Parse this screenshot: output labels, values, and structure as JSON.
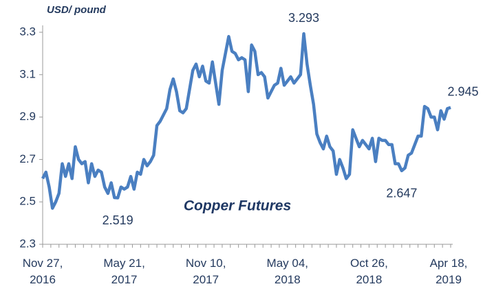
{
  "chart_data": {
    "type": "line",
    "title": "Copper Futures",
    "y_label": "USD/ pound",
    "categories": [
      "Nov 27,\n2016",
      null,
      null,
      null,
      null,
      null,
      null,
      null,
      null,
      null,
      null,
      null,
      null,
      null,
      null,
      null,
      null,
      null,
      null,
      null,
      null,
      null,
      null,
      null,
      null,
      "May 21,\n2017",
      null,
      null,
      null,
      null,
      null,
      null,
      null,
      null,
      null,
      null,
      null,
      null,
      null,
      null,
      null,
      null,
      null,
      null,
      null,
      null,
      null,
      null,
      null,
      null,
      "Nov 10,\n2017",
      null,
      null,
      null,
      null,
      null,
      null,
      null,
      null,
      null,
      null,
      null,
      null,
      null,
      null,
      null,
      null,
      null,
      null,
      null,
      null,
      null,
      null,
      null,
      null,
      "May 04,\n2018",
      null,
      null,
      null,
      null,
      null,
      null,
      null,
      null,
      null,
      null,
      null,
      null,
      null,
      null,
      null,
      null,
      null,
      null,
      null,
      null,
      null,
      null,
      null,
      null,
      "Oct 26,\n2018",
      null,
      null,
      null,
      null,
      null,
      null,
      null,
      null,
      null,
      null,
      null,
      null,
      null,
      null,
      null,
      null,
      null,
      null,
      null,
      null,
      null,
      null,
      null,
      null,
      "Apr 18,\n2019"
    ],
    "series": [
      {
        "name": "Copper Futures",
        "color": "#4a7fc1",
        "values": [
          2.61,
          2.64,
          2.57,
          2.47,
          2.5,
          2.54,
          2.68,
          2.62,
          2.68,
          2.61,
          2.76,
          2.7,
          2.68,
          2.69,
          2.59,
          2.68,
          2.62,
          2.65,
          2.64,
          2.57,
          2.54,
          2.59,
          2.52,
          2.519,
          2.57,
          2.56,
          2.57,
          2.62,
          2.56,
          2.64,
          2.63,
          2.7,
          2.67,
          2.69,
          2.72,
          2.86,
          2.88,
          2.91,
          2.94,
          3.03,
          3.08,
          3.02,
          2.93,
          2.92,
          2.94,
          3.03,
          3.12,
          3.15,
          3.09,
          3.14,
          3.07,
          3.06,
          3.16,
          3.06,
          2.96,
          3.12,
          3.2,
          3.28,
          3.21,
          3.2,
          3.17,
          3.18,
          3.17,
          3.02,
          3.24,
          3.21,
          3.1,
          3.11,
          3.09,
          2.99,
          3.02,
          3.05,
          3.06,
          3.13,
          3.05,
          3.07,
          3.09,
          3.06,
          3.08,
          3.1,
          3.293,
          3.15,
          3.05,
          2.96,
          2.82,
          2.78,
          2.75,
          2.81,
          2.76,
          2.74,
          2.63,
          2.7,
          2.66,
          2.61,
          2.63,
          2.84,
          2.8,
          2.76,
          2.79,
          2.77,
          2.75,
          2.8,
          2.69,
          2.8,
          2.79,
          2.79,
          2.77,
          2.77,
          2.68,
          2.68,
          2.647,
          2.66,
          2.72,
          2.73,
          2.77,
          2.81,
          2.81,
          2.95,
          2.94,
          2.9,
          2.9,
          2.84,
          2.93,
          2.89,
          2.94,
          2.945
        ]
      }
    ],
    "value_labels": [
      null,
      null,
      null,
      null,
      null,
      null,
      null,
      null,
      null,
      null,
      null,
      null,
      null,
      null,
      null,
      null,
      null,
      null,
      null,
      null,
      null,
      null,
      null,
      "2.519",
      null,
      null,
      null,
      null,
      null,
      null,
      null,
      null,
      null,
      null,
      null,
      null,
      null,
      null,
      null,
      null,
      null,
      null,
      null,
      null,
      null,
      null,
      null,
      null,
      null,
      null,
      null,
      null,
      null,
      null,
      null,
      null,
      null,
      null,
      null,
      null,
      null,
      null,
      null,
      null,
      null,
      null,
      null,
      null,
      null,
      null,
      null,
      null,
      null,
      null,
      null,
      null,
      null,
      null,
      null,
      null,
      "3.293",
      null,
      null,
      null,
      null,
      null,
      null,
      null,
      null,
      null,
      null,
      null,
      null,
      null,
      null,
      null,
      null,
      null,
      null,
      null,
      null,
      null,
      null,
      null,
      null,
      null,
      null,
      null,
      null,
      null,
      "2.647",
      null,
      null,
      null,
      null,
      null,
      null,
      null,
      null,
      null,
      null,
      null,
      null,
      null,
      null,
      "2.945"
    ],
    "ylim": [
      2.3,
      3.3
    ],
    "yticks": [
      2.3,
      2.5,
      2.7,
      2.9,
      3.1,
      3.3
    ],
    "grid": false
  }
}
